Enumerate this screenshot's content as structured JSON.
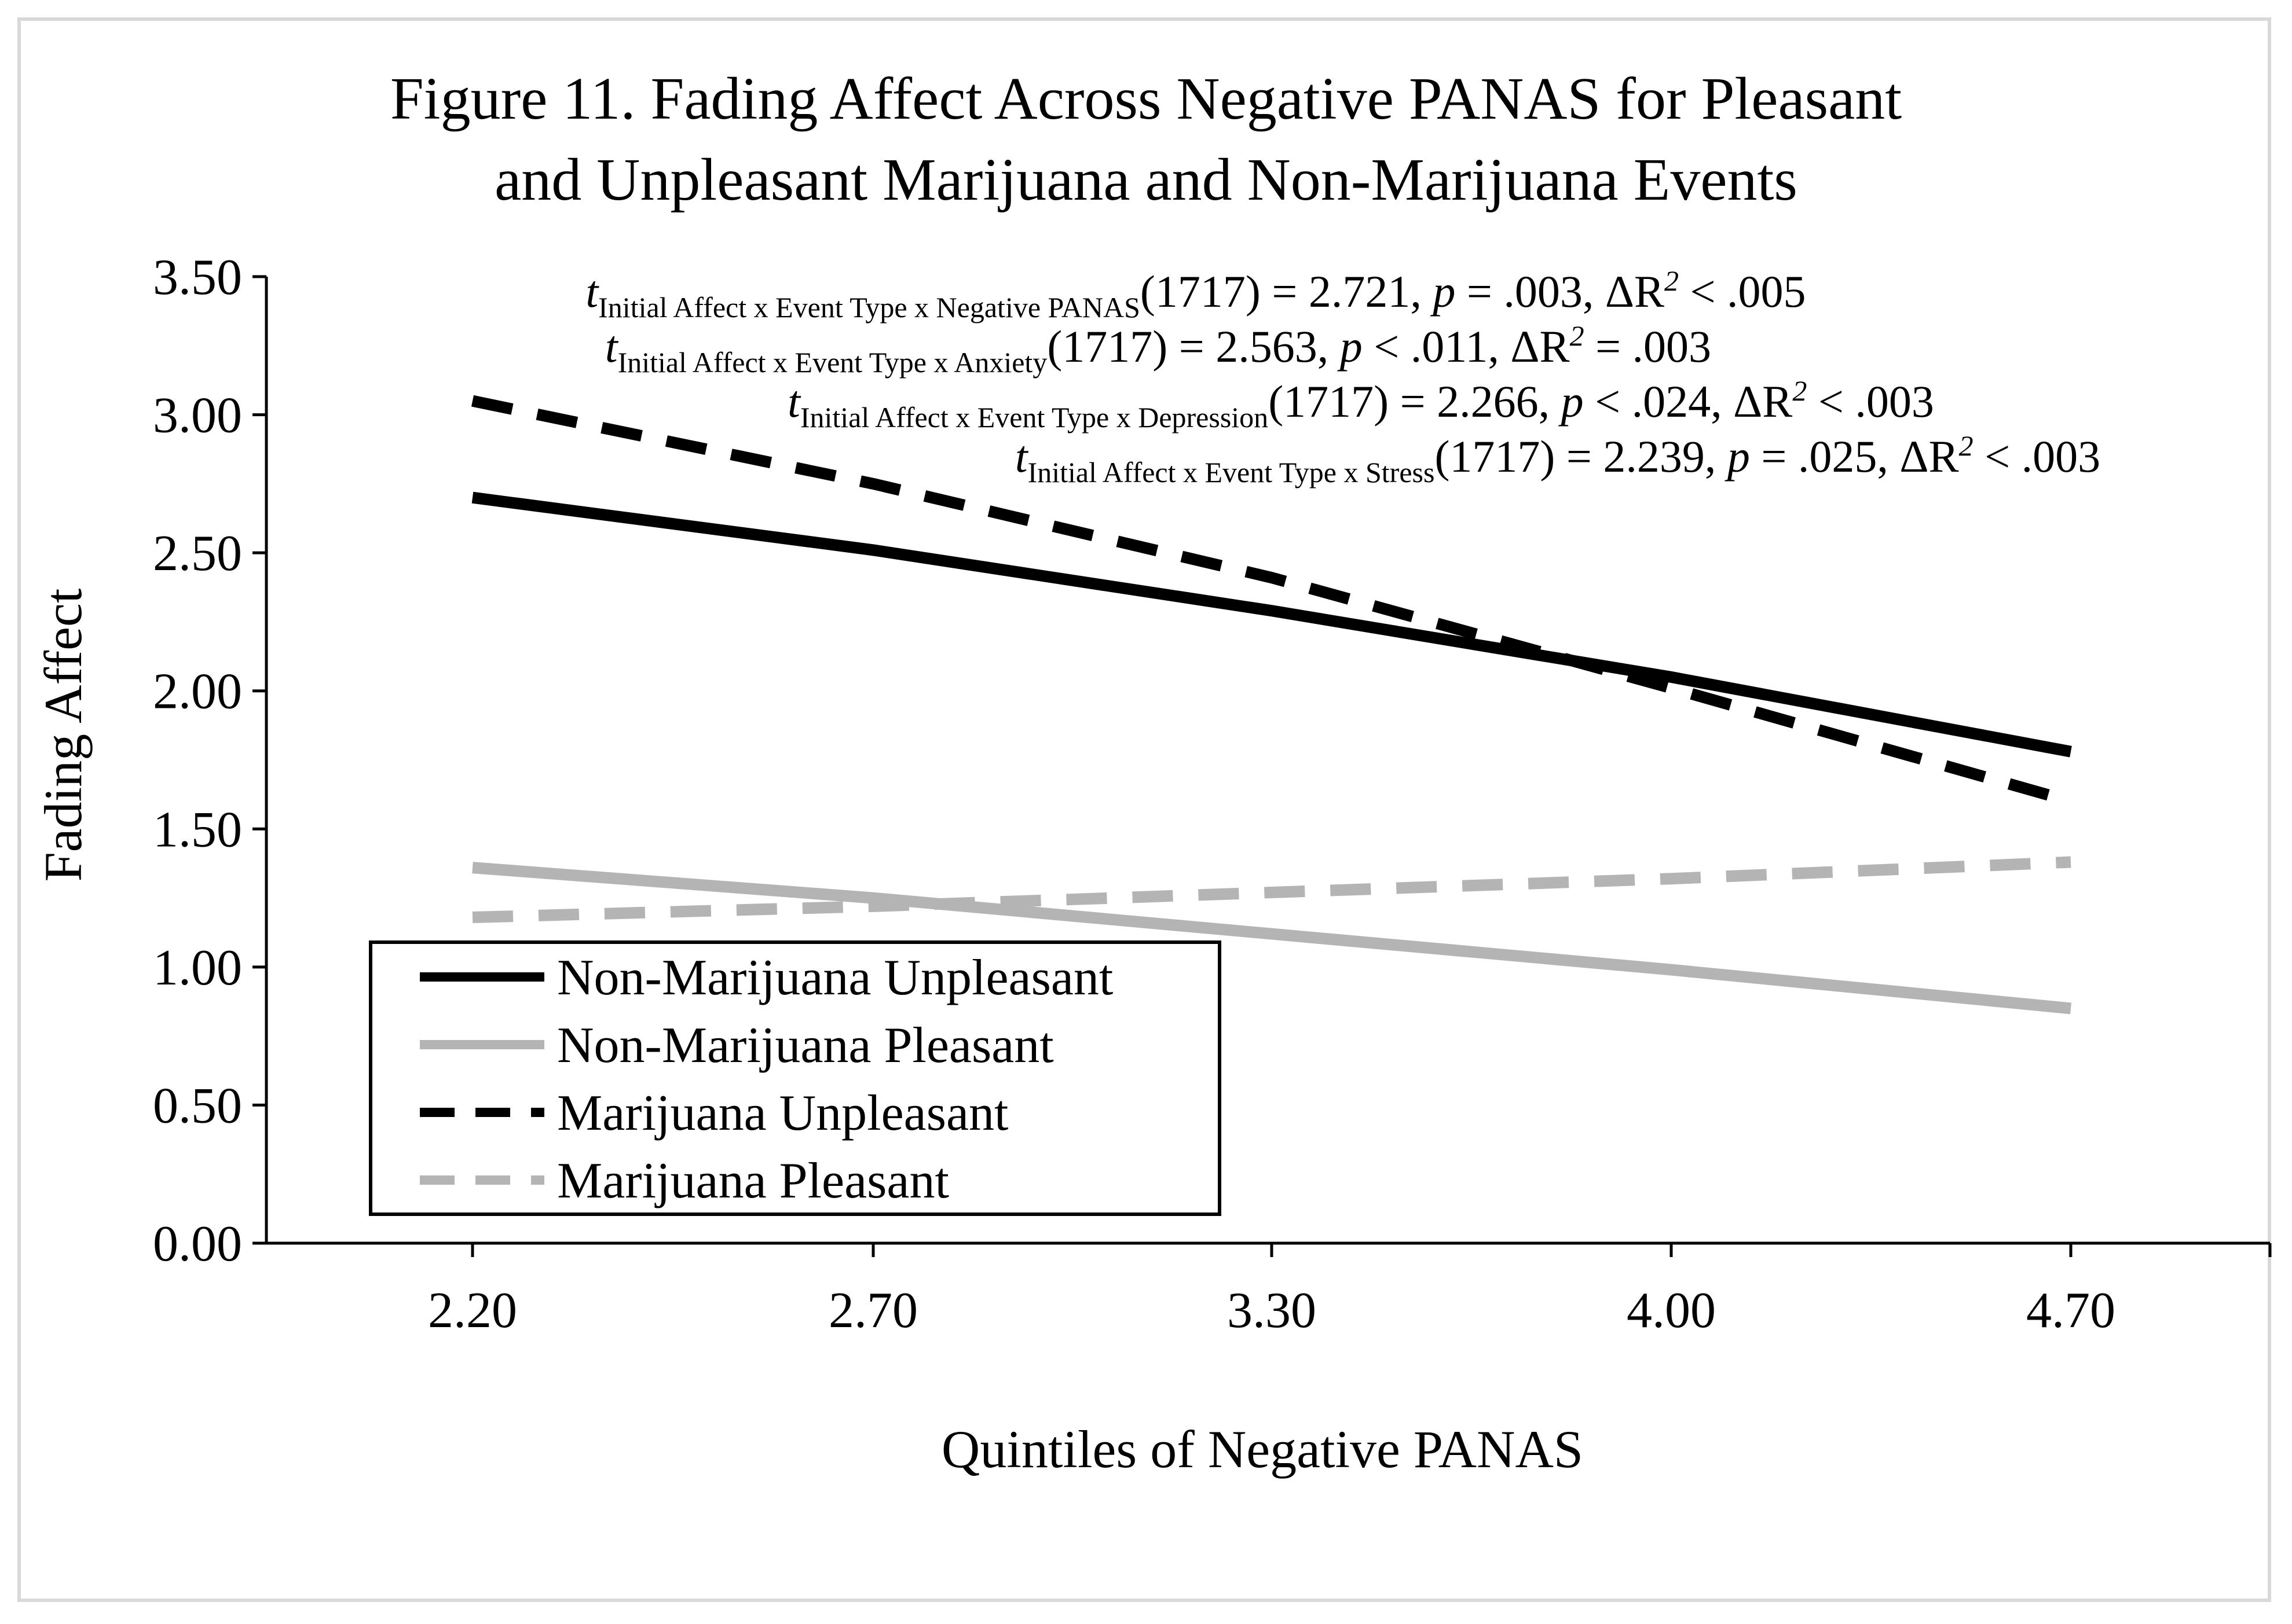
{
  "chart_data": {
    "type": "line",
    "title_lines": [
      "Figure 11. Fading Affect Across Negative PANAS for Pleasant",
      "and Unpleasant Marijuana and Non-Marijuana Events"
    ],
    "xlabel": "Quintiles of Negative PANAS",
    "ylabel": "Fading Affect",
    "categories": [
      "2.20",
      "2.70",
      "3.30",
      "4.00",
      "4.70"
    ],
    "y_ticks": [
      "0.00",
      "0.50",
      "1.00",
      "1.50",
      "2.00",
      "2.50",
      "3.00",
      "3.50"
    ],
    "ylim": [
      0,
      3.5
    ],
    "series": [
      {
        "name": "Non-Marijuana Unpleasant",
        "color": "#000000",
        "dash": "solid",
        "values": [
          2.7,
          2.51,
          2.29,
          2.05,
          1.78
        ]
      },
      {
        "name": "Non-Marijuana Pleasant",
        "color": "#b4b4b4",
        "dash": "solid",
        "values": [
          1.36,
          1.25,
          1.12,
          0.99,
          0.85
        ]
      },
      {
        "name": "Marijuana Unpleasant",
        "color": "#000000",
        "dash": "dashed",
        "values": [
          3.05,
          2.75,
          2.41,
          2.01,
          1.6
        ]
      },
      {
        "name": "Marijuana Pleasant",
        "color": "#b4b4b4",
        "dash": "dashed",
        "values": [
          1.18,
          1.22,
          1.27,
          1.32,
          1.38
        ]
      }
    ],
    "legend_position": "bottom-left",
    "annotations": [
      {
        "t": "t",
        "sub": "Initial Affect x Event Type x Negative PANAS",
        "rest_a": "(1717) = 2.721, ",
        "p": "p",
        "rest_b": " = .003, ΔR",
        "sup": "2",
        "rest_c": " < .005"
      },
      {
        "t": "t",
        "sub": "Initial Affect x Event Type x Anxiety",
        "rest_a": "(1717) = 2.563, ",
        "p": "p",
        "rest_b": " < .011, ΔR",
        "sup": "2",
        "rest_c": " = .003"
      },
      {
        "t": "t",
        "sub": "Initial Affect x Event Type x Depression",
        "rest_a": "(1717) = 2.266, ",
        "p": "p",
        "rest_b": " < .024, ΔR",
        "sup": "2",
        "rest_c": " < .003"
      },
      {
        "t": "t",
        "sub": "Initial Affect x Event Type x Stress",
        "rest_a": "(1717) = 2.239, ",
        "p": "p",
        "rest_b": " = .025, ΔR",
        "sup": "2",
        "rest_c": " < .003"
      }
    ]
  }
}
